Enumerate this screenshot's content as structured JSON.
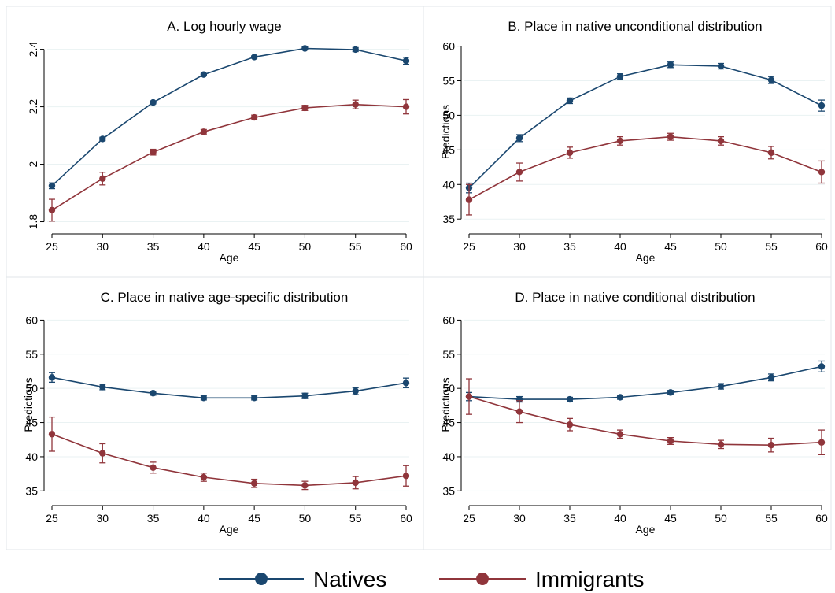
{
  "colors": {
    "natives": "#1a476f",
    "immigrants": "#90353b",
    "grid": "#eaf2f3",
    "frame": "#e0e6e8",
    "axis": "#000000"
  },
  "legend": {
    "placement": "bottom-center",
    "items": [
      {
        "label": "Natives",
        "color": "#1a476f"
      },
      {
        "label": "Immigrants",
        "color": "#90353b"
      }
    ]
  },
  "chart_data": [
    {
      "type": "line",
      "title": "A. Log hourly wage",
      "xlabel": "Age",
      "ylabel": "",
      "x": [
        25,
        30,
        35,
        40,
        45,
        50,
        55,
        60
      ],
      "xticks": [
        "25",
        "30",
        "35",
        "40",
        "45",
        "50",
        "55",
        "60"
      ],
      "yticks": [
        1.8,
        2,
        2.2,
        2.4
      ],
      "ytick_labels": [
        "1.8",
        "2",
        "2.2",
        "2.4"
      ],
      "ytick_rotated": true,
      "ylim": [
        1.785,
        2.44
      ],
      "grid": true,
      "series": [
        {
          "name": "Natives",
          "values": [
            1.925,
            2.088,
            2.215,
            2.312,
            2.373,
            2.403,
            2.399,
            2.36
          ],
          "err": [
            0.01,
            0.006,
            0.005,
            0.004,
            0.004,
            0.005,
            0.007,
            0.012
          ]
        },
        {
          "name": "Immigrants",
          "values": [
            1.84,
            1.95,
            2.042,
            2.113,
            2.163,
            2.196,
            2.208,
            2.2
          ],
          "err": [
            0.038,
            0.022,
            0.01,
            0.008,
            0.008,
            0.009,
            0.015,
            0.025
          ]
        }
      ]
    },
    {
      "type": "line",
      "title": "B. Place in native unconditional distribution",
      "xlabel": "Age",
      "ylabel": "Predictions",
      "x": [
        25,
        30,
        35,
        40,
        45,
        50,
        55,
        60
      ],
      "xticks": [
        "25",
        "30",
        "35",
        "40",
        "45",
        "50",
        "55",
        "60"
      ],
      "yticks": [
        35,
        40,
        45,
        50,
        55,
        60
      ],
      "ytick_labels": [
        "35",
        "40",
        "45",
        "50",
        "55",
        "60"
      ],
      "ytick_rotated": false,
      "ylim": [
        34,
        61.2
      ],
      "grid": true,
      "series": [
        {
          "name": "Natives",
          "values": [
            39.5,
            46.7,
            52.1,
            55.6,
            57.3,
            57.1,
            55.1,
            51.4
          ],
          "err": [
            0.7,
            0.5,
            0.4,
            0.4,
            0.4,
            0.4,
            0.5,
            0.8
          ]
        },
        {
          "name": "Immigrants",
          "values": [
            37.8,
            41.8,
            44.6,
            46.3,
            46.9,
            46.3,
            44.6,
            41.8
          ],
          "err": [
            2.2,
            1.3,
            0.8,
            0.6,
            0.5,
            0.6,
            0.9,
            1.6
          ]
        }
      ]
    },
    {
      "type": "line",
      "title": "C. Place in native age-specific distribution",
      "xlabel": "Age",
      "ylabel": "Predictions",
      "x": [
        25,
        30,
        35,
        40,
        45,
        50,
        55,
        60
      ],
      "xticks": [
        "25",
        "30",
        "35",
        "40",
        "45",
        "50",
        "55",
        "60"
      ],
      "yticks": [
        35,
        40,
        45,
        50,
        55,
        60
      ],
      "ytick_labels": [
        "35",
        "40",
        "45",
        "50",
        "55",
        "60"
      ],
      "ytick_rotated": false,
      "ylim": [
        34,
        61.2
      ],
      "grid": true,
      "series": [
        {
          "name": "Natives",
          "values": [
            51.6,
            50.2,
            49.3,
            48.6,
            48.6,
            48.9,
            49.6,
            50.8
          ],
          "err": [
            0.7,
            0.4,
            0.3,
            0.3,
            0.3,
            0.4,
            0.5,
            0.7
          ]
        },
        {
          "name": "Immigrants",
          "values": [
            43.3,
            40.5,
            38.4,
            37.0,
            36.1,
            35.8,
            36.2,
            37.2
          ],
          "err": [
            2.5,
            1.4,
            0.8,
            0.6,
            0.6,
            0.6,
            0.9,
            1.5
          ]
        }
      ]
    },
    {
      "type": "line",
      "title": "D. Place in native conditional distribution",
      "xlabel": "Age",
      "ylabel": "Predictions",
      "x": [
        25,
        30,
        35,
        40,
        45,
        50,
        55,
        60
      ],
      "xticks": [
        "25",
        "30",
        "35",
        "40",
        "45",
        "50",
        "55",
        "60"
      ],
      "yticks": [
        35,
        40,
        45,
        50,
        55,
        60
      ],
      "ytick_labels": [
        "35",
        "40",
        "45",
        "50",
        "55",
        "60"
      ],
      "ytick_rotated": false,
      "ylim": [
        34,
        61.2
      ],
      "grid": true,
      "series": [
        {
          "name": "Natives",
          "values": [
            48.8,
            48.4,
            48.4,
            48.7,
            49.4,
            50.3,
            51.6,
            53.2
          ],
          "err": [
            0.6,
            0.4,
            0.3,
            0.3,
            0.3,
            0.4,
            0.5,
            0.8
          ]
        },
        {
          "name": "Immigrants",
          "values": [
            48.8,
            46.6,
            44.7,
            43.3,
            42.3,
            41.8,
            41.7,
            42.1
          ],
          "err": [
            2.6,
            1.6,
            0.9,
            0.6,
            0.5,
            0.6,
            1.0,
            1.8
          ]
        }
      ]
    }
  ]
}
